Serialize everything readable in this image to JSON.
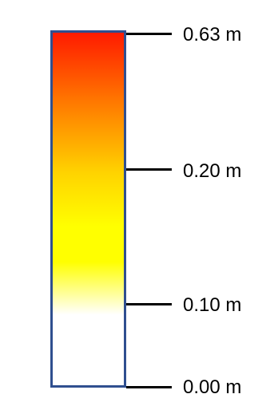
{
  "legend": {
    "colors": {
      "top": "#ff1a00",
      "upper": "#ff7a00",
      "middle": "#ffd400",
      "yellow": "#ffff00",
      "bottom": "#ffffff",
      "border": "#2f4f8f"
    },
    "ticks": [
      {
        "label": "0.63 m"
      },
      {
        "label": "0.20 m"
      },
      {
        "label": "0.10 m"
      },
      {
        "label": "0.00 m"
      }
    ]
  }
}
